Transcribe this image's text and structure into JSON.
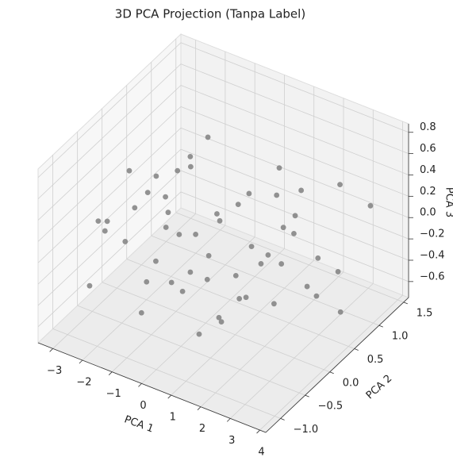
{
  "chart_data": {
    "type": "scatter3d",
    "title": "3D PCA Projection (Tanpa Label)",
    "xlabel": "PCA 1",
    "ylabel": "PCA 2",
    "zlabel": "PCA 3",
    "color": "#808080",
    "grid": true,
    "xlim": [
      -3.5,
      4.2
    ],
    "ylim": [
      -1.3,
      1.6
    ],
    "zlim": [
      -0.75,
      0.88
    ],
    "xticks": [
      {
        "value": -3,
        "label": "−3"
      },
      {
        "value": -2,
        "label": "−2"
      },
      {
        "value": -1,
        "label": "−1"
      },
      0,
      1,
      2,
      3,
      4
    ],
    "yticks": [
      {
        "value": -1.0,
        "label": "−1.0"
      },
      {
        "value": -0.5,
        "label": "−0.5"
      },
      {
        "value": 0.0,
        "label": "0.0"
      },
      {
        "value": 0.5,
        "label": "0.5"
      },
      {
        "value": 1.0,
        "label": "1.0"
      },
      {
        "value": 1.5,
        "label": "1.5"
      }
    ],
    "zticks": [
      {
        "value": -0.6,
        "label": "−0.6"
      },
      {
        "value": -0.4,
        "label": "−0.4"
      },
      {
        "value": -0.2,
        "label": "−0.2"
      },
      {
        "value": 0.0,
        "label": "0.0"
      },
      0.2,
      0.4,
      0.6,
      0.8
    ],
    "x": [
      -1.57,
      -2.39,
      -0.47,
      1.23,
      3.61,
      2.78,
      3.83,
      0.91,
      -1.5,
      -3.03,
      -2.93,
      -2.52,
      -1.77,
      -1.13,
      -0.03,
      1.5,
      1.94,
      2.68,
      3.25,
      3.5,
      3.83,
      3.25,
      2.0,
      1.32,
      0.62,
      0.42,
      0.18,
      -0.27,
      -0.66,
      -0.94,
      -1.0,
      -1.05,
      -2.04,
      -2.18,
      -1.82,
      -1.45,
      0.15,
      1.37,
      1.79,
      1.98,
      2.28,
      2.27,
      2.08,
      2.28,
      0.34,
      0.1,
      0.69,
      1.49,
      1.85,
      -0.52,
      -1.02,
      1.45,
      -1.29,
      -2.71
    ],
    "y": [
      0.99,
      -0.92,
      -1.02,
      -0.87,
      1.18,
      1.06,
      0.44,
      0.95,
      0.59,
      0.27,
      -0.42,
      -0.53,
      -0.57,
      -0.52,
      -0.45,
      -0.63,
      -0.48,
      -0.22,
      0.11,
      0.15,
      0.39,
      0.33,
      0.74,
      0.65,
      0.51,
      0.41,
      0.18,
      -0.04,
      -0.14,
      -0.24,
      -0.41,
      -0.13,
      0.05,
      -0.13,
      0.09,
      0.3,
      0.14,
      0.11,
      0.05,
      0.08,
      0.17,
      0.43,
      0.33,
      0.45,
      -0.14,
      -0.37,
      -0.38,
      -0.28,
      -0.29,
      -0.38,
      0.31,
      -0.55,
      -0.04,
      -0.37
    ],
    "z": [
      0.39,
      -0.26,
      -0.26,
      -0.34,
      0.23,
      0.39,
      -0.42,
      0.39,
      0.39,
      0.23,
      0.07,
      0.07,
      0.07,
      -0.26,
      -0.26,
      -0.26,
      -0.1,
      -0.18,
      -0.1,
      -0.18,
      -0.02,
      0.07,
      0.39,
      0.31,
      0.31,
      0.23,
      0.15,
      0.07,
      0.07,
      0.15,
      -0.1,
      0.23,
      0.23,
      0.15,
      0.39,
      0.39,
      0.23,
      0.07,
      -0.02,
      0.07,
      -0.02,
      0.15,
      0.23,
      0.31,
      -0.02,
      -0.1,
      -0.1,
      -0.02,
      -0.18,
      -0.26,
      0.47,
      -0.34,
      0.31,
      0.07
    ]
  }
}
